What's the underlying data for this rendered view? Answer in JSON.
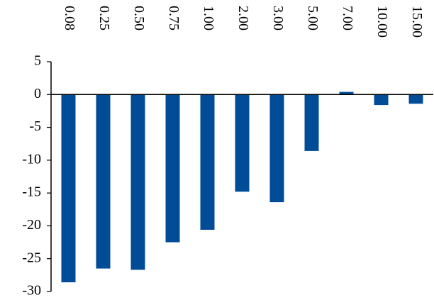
{
  "chart_data": {
    "type": "bar",
    "categories": [
      "0.08",
      "0.25",
      "0.50",
      "0.75",
      "1.00",
      "2.00",
      "3.00",
      "5.00",
      "7.00",
      "10.00",
      "15.00"
    ],
    "values": [
      -28.6,
      -26.5,
      -26.7,
      -22.5,
      -20.6,
      -14.8,
      -16.4,
      -8.6,
      0.4,
      -1.6,
      -1.4
    ],
    "color": "#004c97",
    "ylim": [
      -30,
      5
    ],
    "yticks": [
      5,
      0,
      -5,
      -10,
      -15,
      -20,
      -25,
      -30
    ],
    "grid": false
  }
}
